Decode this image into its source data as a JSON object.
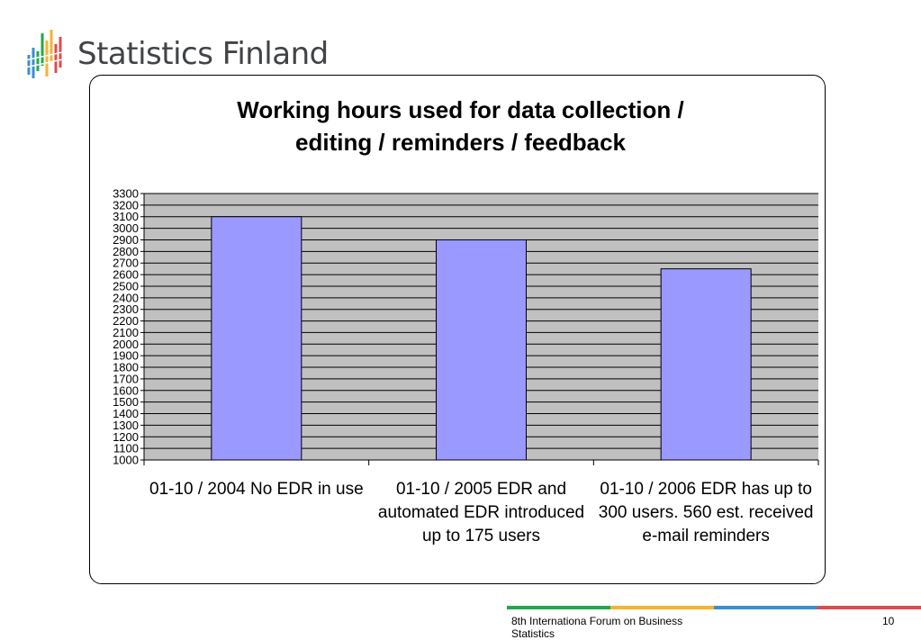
{
  "brand": {
    "name": "Statistics Finland",
    "icon": "statistics-finland-logo-icon",
    "stripe_colors": [
      "#3a8fd0",
      "#21a94b",
      "#f6b330",
      "#e14b4b"
    ]
  },
  "chart_data": {
    "type": "bar",
    "title_lines": [
      "Working hours used for data collection /",
      "editing / reminders / feedback"
    ],
    "categories": [
      "01-10 / 2004 No EDR in use",
      "01-10 / 2005 EDR and automated EDR introduced up to 175 users",
      "01-10 / 2006 EDR has up to 300 users. 560 est. received e-mail reminders"
    ],
    "values": [
      3100,
      2900,
      2650
    ],
    "ylim": [
      1000,
      3300
    ],
    "ytick_step": 100,
    "ytick_labels": [
      "3300",
      "3200",
      "3100",
      "3000",
      "2900",
      "2800",
      "2700",
      "2600",
      "2500",
      "2400",
      "2300",
      "2200",
      "2100",
      "2000",
      "1900",
      "1800",
      "1700",
      "1600",
      "1500",
      "1400",
      "1300",
      "1200",
      "1100",
      "1000"
    ],
    "grid": true,
    "legend": "none",
    "bar_color": "#9999ff",
    "plot_background": "#c0c0c0"
  },
  "footer": {
    "text": "8th Internationa Forum on Business Statistics",
    "page_number": "10"
  }
}
